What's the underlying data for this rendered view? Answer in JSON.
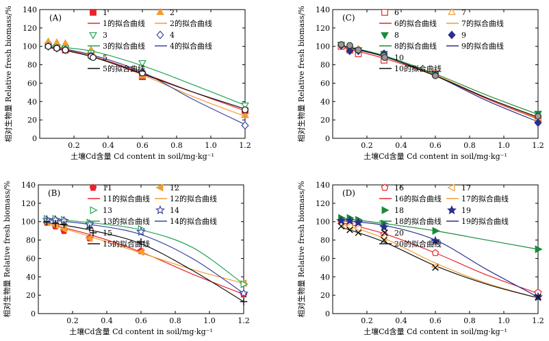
{
  "chart_data": [
    {
      "type": "scatter",
      "tag": "(A)",
      "xlabel": "土壤Cd含量 Cd content in soil/mg·kg⁻¹",
      "ylabel": "相对生物量 Relative fresh biomass/%",
      "xlim": [
        0,
        1.2
      ],
      "ylim": [
        0,
        140
      ],
      "xticks": [
        "0.2",
        "0.4",
        "0.6",
        "0.8",
        "1.0",
        "1.2"
      ],
      "yticks": [
        "0",
        "20",
        "40",
        "60",
        "80",
        "100",
        "120",
        "140"
      ],
      "legend_position": "top-right",
      "series": [
        {
          "name": "1",
          "curve_name": "1的拟合曲线",
          "color": "#e8232b",
          "marker": "square-filled",
          "x": [
            0.05,
            0.1,
            0.15,
            0.3,
            0.6,
            1.2
          ],
          "y": [
            101,
            99,
            96,
            91,
            67,
            30
          ],
          "curve": [
            [
              0.05,
              100
            ],
            [
              0.3,
              90
            ],
            [
              0.6,
              71
            ],
            [
              0.9,
              50
            ],
            [
              1.2,
              30
            ]
          ]
        },
        {
          "name": "2",
          "curve_name": "2的拟合曲线",
          "color": "#f39c32",
          "marker": "triangle-filled",
          "x": [
            0.05,
            0.1,
            0.15,
            0.3,
            0.6,
            1.2
          ],
          "y": [
            105,
            104,
            103,
            96,
            68,
            25
          ],
          "curve": [
            [
              0.05,
              102
            ],
            [
              0.3,
              90
            ],
            [
              0.6,
              69
            ],
            [
              0.9,
              45
            ],
            [
              1.2,
              24
            ]
          ]
        },
        {
          "name": "3",
          "curve_name": "3的拟合曲线",
          "color": "#21a34e",
          "marker": "triangle-down-open",
          "x": [
            0.05,
            0.1,
            0.15,
            0.3,
            0.6,
            1.2
          ],
          "y": [
            100,
            99,
            98,
            93,
            82,
            36
          ],
          "curve": [
            [
              0.05,
              100
            ],
            [
              0.3,
              95
            ],
            [
              0.6,
              79
            ],
            [
              0.9,
              58
            ],
            [
              1.2,
              36
            ]
          ]
        },
        {
          "name": "4",
          "curve_name": "4的拟合曲线",
          "color": "#3b45a3",
          "marker": "diamond-open",
          "x": [
            0.05,
            0.1,
            0.15,
            0.3,
            0.6,
            1.2
          ],
          "y": [
            100,
            98,
            96,
            90,
            72,
            14
          ],
          "curve": [
            [
              0.05,
              100
            ],
            [
              0.3,
              91
            ],
            [
              0.6,
              72
            ],
            [
              0.9,
              42
            ],
            [
              1.2,
              15
            ]
          ]
        },
        {
          "name": "5",
          "curve_name": "5的拟合曲线",
          "color": "#111111",
          "marker": "circle-open",
          "x": [
            0.05,
            0.1,
            0.15,
            0.3,
            0.6,
            1.2
          ],
          "y": [
            100,
            98,
            96,
            89,
            71,
            31
          ],
          "curve": [
            [
              0.05,
              99
            ],
            [
              0.3,
              89
            ],
            [
              0.6,
              70
            ],
            [
              0.9,
              50
            ],
            [
              1.2,
              32
            ]
          ]
        }
      ]
    },
    {
      "type": "scatter",
      "tag": "(C)",
      "xlabel": "土壤Cd含量 Cd content in soil/mg·kg⁻¹",
      "ylabel": "相对生物量 Relative fresh biomass/%",
      "xlim": [
        0,
        1.2
      ],
      "ylim": [
        0,
        140
      ],
      "xticks": [
        "0.2",
        "0.4",
        "0.6",
        "0.8",
        "1.0",
        "1.2"
      ],
      "yticks": [
        "0",
        "20",
        "40",
        "60",
        "80",
        "100",
        "120",
        "140"
      ],
      "legend_position": "top-right",
      "series": [
        {
          "name": "6",
          "curve_name": "6的拟合曲线",
          "color": "#e8232b",
          "marker": "square-open",
          "x": [
            0.05,
            0.1,
            0.15,
            0.3,
            0.6,
            1.2
          ],
          "y": [
            100,
            96,
            92,
            85,
            70,
            22
          ],
          "curve": [
            [
              0.05,
              99
            ],
            [
              0.3,
              87
            ],
            [
              0.6,
              68
            ],
            [
              0.9,
              43
            ],
            [
              1.2,
              21
            ]
          ]
        },
        {
          "name": "7",
          "curve_name": "7的拟合曲线",
          "color": "#f39c32",
          "marker": "triangle-open",
          "x": [
            0.05,
            0.1,
            0.15,
            0.3,
            0.6,
            1.2
          ],
          "y": [
            101,
            96,
            97,
            90,
            71,
            22
          ],
          "curve": [
            [
              0.05,
              100
            ],
            [
              0.3,
              89
            ],
            [
              0.6,
              69
            ],
            [
              0.9,
              44
            ],
            [
              1.2,
              22
            ]
          ]
        },
        {
          "name": "8",
          "curve_name": "8的拟合曲线",
          "color": "#1a8a3c",
          "marker": "triangle-down-filled",
          "x": [
            0.05,
            0.1,
            0.15,
            0.3,
            0.6,
            1.2
          ],
          "y": [
            102,
            97,
            96,
            92,
            70,
            27
          ],
          "curve": [
            [
              0.05,
              101
            ],
            [
              0.3,
              90
            ],
            [
              0.6,
              70
            ],
            [
              0.9,
              47
            ],
            [
              1.2,
              26
            ]
          ]
        },
        {
          "name": "9",
          "curve_name": "9的拟合曲线",
          "color": "#2b2f8f",
          "marker": "diamond-filled",
          "x": [
            0.05,
            0.1,
            0.15,
            0.3,
            0.6,
            1.2
          ],
          "y": [
            101,
            95,
            95,
            92,
            69,
            17
          ],
          "curve": [
            [
              0.05,
              100
            ],
            [
              0.3,
              89
            ],
            [
              0.6,
              68
            ],
            [
              0.9,
              41
            ],
            [
              1.2,
              18
            ]
          ]
        },
        {
          "name": "10",
          "curve_name": "10的拟合曲线",
          "color": "#111111",
          "marker": "circle-grey",
          "x": [
            0.05,
            0.1,
            0.15,
            0.3,
            0.6,
            1.2
          ],
          "y": [
            102,
            101,
            96,
            90,
            68,
            24
          ],
          "curve": [
            [
              0.05,
              101
            ],
            [
              0.3,
              89
            ],
            [
              0.6,
              68
            ],
            [
              0.9,
              44
            ],
            [
              1.2,
              23
            ]
          ]
        }
      ]
    },
    {
      "type": "scatter",
      "tag": "(B)",
      "xlabel": "土壤Cd含量 Cd content in soil/mg·kg⁻¹",
      "ylabel": "相对生物量 Relative fresh biomass/%",
      "xlim": [
        0,
        1.2
      ],
      "ylim": [
        0,
        140
      ],
      "xticks": [
        "0.2",
        "0.4",
        "0.6",
        "0.8",
        "1.0",
        "1.2"
      ],
      "yticks": [
        "0",
        "20",
        "40",
        "60",
        "80",
        "100",
        "120",
        "140"
      ],
      "legend_position": "top-right",
      "series": [
        {
          "name": "11",
          "curve_name": "11的拟合曲线",
          "color": "#e8232b",
          "marker": "pentagon-filled",
          "x": [
            0.05,
            0.1,
            0.15,
            0.3,
            0.6,
            1.2
          ],
          "y": [
            99,
            95,
            90,
            82,
            68,
            21
          ],
          "curve": [
            [
              0.05,
              98
            ],
            [
              0.3,
              86
            ],
            [
              0.6,
              67
            ],
            [
              0.9,
              43
            ],
            [
              1.2,
              21
            ]
          ]
        },
        {
          "name": "12",
          "curve_name": "12的拟合曲线",
          "color": "#f39c32",
          "marker": "triangle-left-filled",
          "x": [
            0.05,
            0.1,
            0.15,
            0.3,
            0.6,
            1.2
          ],
          "y": [
            99,
            96,
            92,
            82,
            67,
            33
          ],
          "curve": [
            [
              0.05,
              98
            ],
            [
              0.3,
              84
            ],
            [
              0.6,
              66
            ],
            [
              0.9,
              48
            ],
            [
              1.2,
              33
            ]
          ]
        },
        {
          "name": "13",
          "curve_name": "13的拟合曲线",
          "color": "#21a34e",
          "marker": "triangle-right-open",
          "x": [
            0.05,
            0.1,
            0.15,
            0.3,
            0.6,
            1.2
          ],
          "y": [
            103,
            103,
            102,
            99,
            92,
            32
          ],
          "curve": [
            [
              0.05,
              103
            ],
            [
              0.3,
              99
            ],
            [
              0.6,
              91
            ],
            [
              0.9,
              72
            ],
            [
              1.2,
              32
            ]
          ]
        },
        {
          "name": "14",
          "curve_name": "14的拟合曲线",
          "color": "#3b45a3",
          "marker": "star-open",
          "x": [
            0.05,
            0.1,
            0.15,
            0.3,
            0.6,
            1.2
          ],
          "y": [
            102,
            102,
            101,
            97,
            89,
            22
          ],
          "curve": [
            [
              0.05,
              102
            ],
            [
              0.3,
              97
            ],
            [
              0.6,
              86
            ],
            [
              0.9,
              60
            ],
            [
              1.2,
              22
            ]
          ]
        },
        {
          "name": "15",
          "curve_name": "15的拟合曲线",
          "color": "#111111",
          "marker": "plus",
          "x": [
            0.05,
            0.1,
            0.15,
            0.3,
            0.6,
            1.2
          ],
          "y": [
            100,
            98,
            97,
            93,
            78,
            13
          ],
          "curve": [
            [
              0.05,
              99
            ],
            [
              0.3,
              91
            ],
            [
              0.6,
              76
            ],
            [
              0.9,
              47
            ],
            [
              1.2,
              13
            ]
          ]
        }
      ]
    },
    {
      "type": "scatter",
      "tag": "(D)",
      "xlabel": "土壤Cd含量 Cd content in soil/mg·kg⁻¹",
      "ylabel": "相对生物量 Relative fresh biomass/%",
      "xlim": [
        0,
        1.2
      ],
      "ylim": [
        0,
        140
      ],
      "xticks": [
        "0.2",
        "0.4",
        "0.6",
        "0.8",
        "1.0",
        "1.2"
      ],
      "yticks": [
        "0",
        "20",
        "40",
        "60",
        "80",
        "100",
        "120",
        "140"
      ],
      "legend_position": "top-right",
      "series": [
        {
          "name": "16",
          "curve_name": "16的拟合曲线",
          "color": "#e8232b",
          "marker": "pentagon-open",
          "x": [
            0.05,
            0.1,
            0.15,
            0.3,
            0.6,
            1.2
          ],
          "y": [
            100,
            97,
            95,
            86,
            66,
            23
          ],
          "curve": [
            [
              0.05,
              99
            ],
            [
              0.3,
              87
            ],
            [
              0.6,
              66
            ],
            [
              0.9,
              42
            ],
            [
              1.2,
              22
            ]
          ]
        },
        {
          "name": "17",
          "curve_name": "17的拟合曲线",
          "color": "#f39c32",
          "marker": "triangle-left-open",
          "x": [
            0.05,
            0.1,
            0.15,
            0.3,
            0.6,
            1.2
          ],
          "y": [
            98,
            95,
            93,
            83,
            51,
            18
          ],
          "curve": [
            [
              0.05,
              98
            ],
            [
              0.3,
              82
            ],
            [
              0.6,
              55
            ],
            [
              0.9,
              33
            ],
            [
              1.2,
              17
            ]
          ]
        },
        {
          "name": "18",
          "curve_name": "18的拟合曲线",
          "color": "#1a8a3c",
          "marker": "triangle-right-filled",
          "x": [
            0.05,
            0.1,
            0.15,
            0.3,
            0.6,
            1.2
          ],
          "y": [
            104,
            104,
            102,
            98,
            90,
            70
          ],
          "curve": [
            [
              0.05,
              104
            ],
            [
              0.3,
              98
            ],
            [
              0.6,
              90
            ],
            [
              0.9,
              80
            ],
            [
              1.2,
              70
            ]
          ]
        },
        {
          "name": "19",
          "curve_name": "19的拟合曲线",
          "color": "#2b2f8f",
          "marker": "star-filled",
          "x": [
            0.05,
            0.1,
            0.15,
            0.3,
            0.6,
            1.2
          ],
          "y": [
            101,
            101,
            99,
            94,
            79,
            18
          ],
          "curve": [
            [
              0.05,
              101
            ],
            [
              0.3,
              96
            ],
            [
              0.6,
              80
            ],
            [
              0.9,
              48
            ],
            [
              1.2,
              18
            ]
          ]
        },
        {
          "name": "20",
          "curve_name": "20的拟合曲线",
          "color": "#111111",
          "marker": "x",
          "x": [
            0.05,
            0.1,
            0.15,
            0.3,
            0.6,
            1.2
          ],
          "y": [
            95,
            91,
            88,
            80,
            50,
            18
          ],
          "curve": [
            [
              0.05,
              94
            ],
            [
              0.3,
              78
            ],
            [
              0.6,
              52
            ],
            [
              0.9,
              32
            ],
            [
              1.2,
              17
            ]
          ]
        }
      ]
    }
  ]
}
